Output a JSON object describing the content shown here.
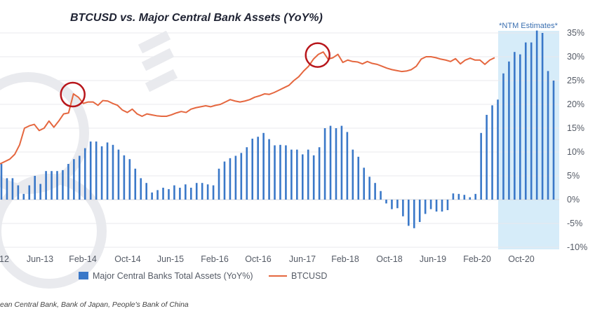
{
  "chart_data": {
    "type": "bar+line",
    "title": "BTCUSD vs. Major Central Bank Assets (YoY%)",
    "annotation": "*NTM Estimates*",
    "source": "ean Central Bank, Bank of Japan, People's Bank of China",
    "x_tick_labels": [
      "12",
      "Jun-13",
      "Feb-14",
      "Oct-14",
      "Jun-15",
      "Feb-16",
      "Oct-16",
      "Jun-17",
      "Feb-18",
      "Oct-18",
      "Jun-19",
      "Feb-20",
      "Oct-20"
    ],
    "y_right_ticks": [
      "35%",
      "30%",
      "25%",
      "20%",
      "15%",
      "10%",
      "5%",
      "0%",
      "-5%",
      "-10%"
    ],
    "ylim_right": [
      -10,
      35
    ],
    "grid": "horizontal",
    "legend_position": "bottom",
    "bars": {
      "name": "Major Central Banks Total Assets (YoY%)",
      "color": "#3a78c8",
      "values": [
        7.5,
        4.5,
        4.5,
        3,
        1.2,
        3,
        5,
        3.3,
        6,
        6,
        6,
        6.2,
        7.5,
        8.5,
        9.2,
        10.8,
        12.2,
        12.2,
        11.2,
        12,
        11.5,
        10.5,
        9.3,
        8.5,
        6.5,
        4.5,
        3.5,
        1.5,
        2,
        2.5,
        2.2,
        3,
        2.5,
        3.2,
        2.5,
        3.5,
        3.5,
        3.2,
        3,
        6.5,
        8,
        8.7,
        9.2,
        9.8,
        11,
        12.8,
        13.2,
        14,
        12.7,
        11.4,
        11.5,
        11.4,
        10.5,
        10.5,
        9.5,
        10.5,
        9.3,
        11,
        15,
        15.5,
        15,
        15.5,
        14.2,
        10.5,
        9,
        6.7,
        4.8,
        3.5,
        1.8,
        -0.8,
        -2,
        -1.8,
        -3.5,
        -5.5,
        -6,
        -4.7,
        -3,
        -2,
        -2.5,
        -2.5,
        -2.2,
        1.3,
        1.2,
        1,
        0.5,
        1.2,
        14,
        17.8,
        19.8,
        21,
        26.5,
        29,
        31,
        30.5,
        33,
        33,
        35.5,
        35,
        27,
        25
      ]
    },
    "line": {
      "name": "BTCUSD",
      "color": "#e5673f",
      "values": [
        7.5,
        8,
        8.5,
        9.5,
        11.5,
        15,
        15.5,
        15.8,
        14.5,
        15,
        16.5,
        15.2,
        16.5,
        18,
        18.2,
        22.2,
        21.5,
        20.2,
        20.5,
        20.5,
        19.8,
        20.8,
        20.7,
        20.2,
        19.8,
        18.8,
        18.3,
        19,
        18,
        17.5,
        18,
        17.8,
        17.6,
        17.5,
        17.5,
        17.8,
        18.2,
        18.5,
        18.3,
        19,
        19.3,
        19.5,
        19.7,
        19.5,
        19.8,
        20,
        20.5,
        21,
        20.7,
        20.5,
        20.7,
        21,
        21.5,
        21.8,
        22.2,
        22.1,
        22.5,
        23,
        23.5,
        24,
        25,
        25.8,
        27,
        28,
        29.5,
        30.5,
        31,
        29.5,
        29.8,
        30.5,
        28.8,
        29.3,
        29,
        28.9,
        28.5,
        29,
        28.6,
        28.4,
        28,
        27.6,
        27.3,
        27.1,
        26.9,
        27,
        27.3,
        28,
        29.5,
        30,
        30,
        29.8,
        29.5,
        29.3,
        29,
        29.6,
        28.5,
        29.3,
        29.7,
        29.3,
        29.3,
        28.4,
        29.3,
        29.8
      ]
    },
    "highlighted_points": [
      15,
      65
    ]
  }
}
